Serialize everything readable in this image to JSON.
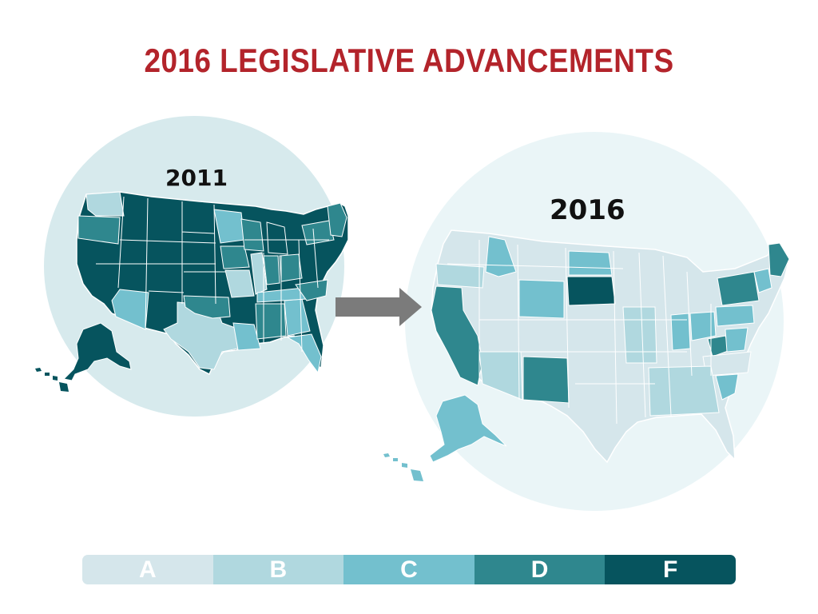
{
  "title": {
    "text": "2016 LEGISLATIVE ADVANCEMENTS",
    "color": "#b3242b"
  },
  "maps": [
    {
      "label": "2011",
      "circle_color": "#d7eaed"
    },
    {
      "label": "2016",
      "circle_color": "#eaf5f7"
    }
  ],
  "arrow_color": "#7b7b7b",
  "grade_colors": {
    "A": "#d5e6eb",
    "B": "#b0d8df",
    "C": "#73c0ce",
    "D": "#2f878e",
    "F": "#06545e"
  },
  "legend": [
    {
      "grade": "A",
      "color": "#d5e6eb"
    },
    {
      "grade": "B",
      "color": "#b0d8df"
    },
    {
      "grade": "C",
      "color": "#73c0ce"
    },
    {
      "grade": "D",
      "color": "#2f878e"
    },
    {
      "grade": "F",
      "color": "#06545e"
    }
  ]
}
